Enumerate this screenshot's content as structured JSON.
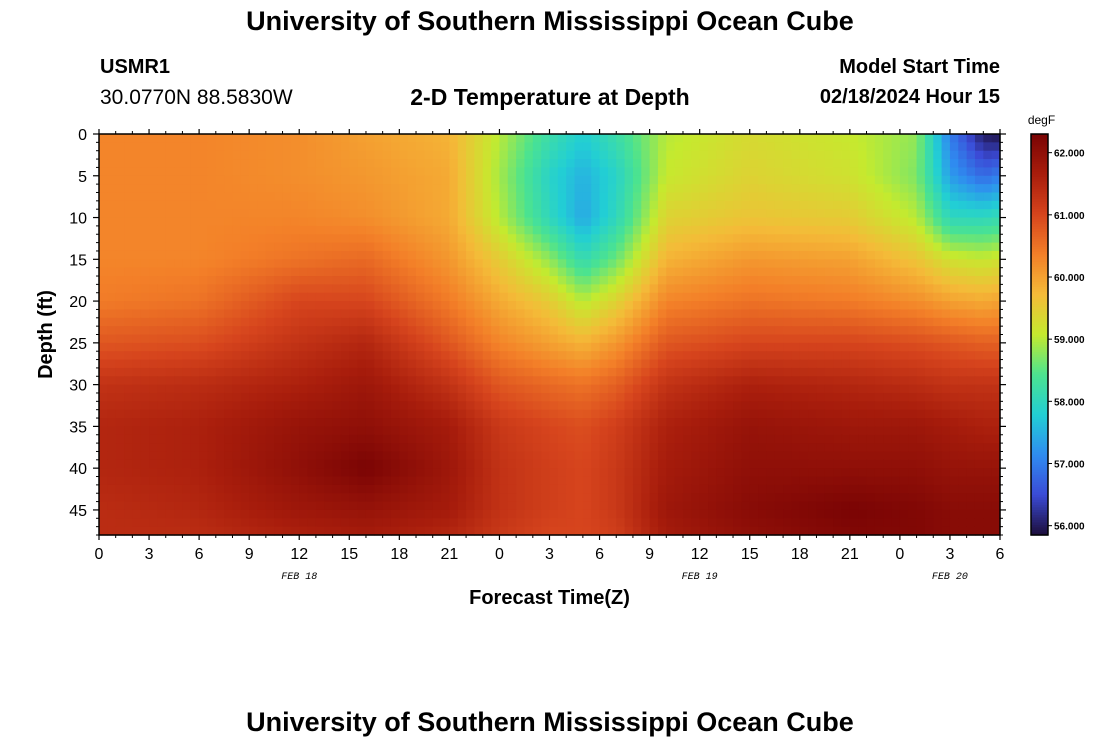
{
  "header": {
    "title": "University of Southern Mississippi Ocean Cube",
    "station_id": "USMR1",
    "station_coords": "30.0770N  88.5830W",
    "plot_title": "2-D Temperature at Depth",
    "model_label": "Model Start Time",
    "model_time": "02/18/2024 Hour 15"
  },
  "footer": {
    "title": "University of Southern Mississippi Ocean Cube"
  },
  "chart_data": {
    "type": "heatmap",
    "xlabel": "Forecast Time(Z)",
    "ylabel": "Depth (ft)",
    "x_tick_labels": [
      "0",
      "3",
      "6",
      "9",
      "12",
      "15",
      "18",
      "21",
      "0",
      "3",
      "6",
      "9",
      "12",
      "15",
      "18",
      "21",
      "0",
      "3",
      "6"
    ],
    "date_labels": [
      {
        "label": "FEB 18",
        "tick_index": 4
      },
      {
        "label": "FEB 19",
        "tick_index": 12
      },
      {
        "label": "FEB 20",
        "tick_index": 17
      }
    ],
    "x_hours_range": [
      0,
      54
    ],
    "ylim": [
      0,
      48
    ],
    "y_ticks": [
      0,
      5,
      10,
      15,
      20,
      25,
      30,
      35,
      40,
      45
    ],
    "colorbar": {
      "unit": "degF",
      "min": 55.85,
      "max": 62.3,
      "tick_values": [
        56,
        57,
        58,
        59,
        60,
        61,
        62
      ],
      "tick_labels": [
        "56.000",
        "57.000",
        "58.000",
        "59.000",
        "60.000",
        "61.000",
        "62.000"
      ],
      "colors": [
        "#1c0d3a",
        "#3b4bd6",
        "#2f8cf0",
        "#22cfd4",
        "#4ce38f",
        "#c5ea2e",
        "#f4bb38",
        "#f37f28",
        "#d6441d",
        "#a81d0c",
        "#7a0404"
      ]
    },
    "depth_profiles": {
      "depths_ft": [
        0,
        5,
        10,
        15,
        20,
        25,
        30,
        35,
        40,
        45,
        48
      ],
      "profiles": [
        {
          "hour": 0,
          "temps": [
            60.3,
            60.3,
            60.3,
            60.3,
            60.4,
            60.8,
            61.3,
            61.5,
            61.5,
            61.4,
            61.4
          ]
        },
        {
          "hour": 6,
          "temps": [
            60.3,
            60.3,
            60.3,
            60.3,
            60.5,
            60.9,
            61.4,
            61.6,
            61.6,
            61.5,
            61.4
          ]
        },
        {
          "hour": 12,
          "temps": [
            60.2,
            60.2,
            60.3,
            60.5,
            61.0,
            61.3,
            61.6,
            61.9,
            62.0,
            61.8,
            61.6
          ]
        },
        {
          "hour": 16,
          "temps": [
            60.0,
            60.1,
            60.2,
            60.6,
            61.0,
            61.5,
            61.8,
            62.0,
            62.3,
            61.9,
            61.7
          ]
        },
        {
          "hour": 21,
          "temps": [
            59.8,
            59.9,
            59.9,
            60.1,
            60.4,
            60.8,
            61.3,
            61.7,
            61.8,
            61.7,
            61.5
          ]
        },
        {
          "hour": 24,
          "temps": [
            59.0,
            58.9,
            59.0,
            59.5,
            59.9,
            60.3,
            60.8,
            61.2,
            61.3,
            61.3,
            61.2
          ]
        },
        {
          "hour": 27,
          "temps": [
            58.2,
            57.9,
            58.0,
            58.8,
            59.5,
            60.0,
            60.6,
            61.0,
            61.1,
            61.1,
            61.0
          ]
        },
        {
          "hour": 29,
          "temps": [
            57.8,
            57.5,
            57.4,
            58.1,
            59.0,
            59.8,
            60.5,
            60.9,
            61.0,
            61.0,
            61.0
          ]
        },
        {
          "hour": 31,
          "temps": [
            58.2,
            57.9,
            58.0,
            58.6,
            59.4,
            60.1,
            60.7,
            61.1,
            61.2,
            61.2,
            61.1
          ]
        },
        {
          "hour": 34,
          "temps": [
            59.0,
            59.1,
            59.4,
            59.8,
            60.3,
            60.8,
            61.3,
            61.6,
            61.7,
            61.8,
            61.7
          ]
        },
        {
          "hour": 39,
          "temps": [
            59.3,
            59.4,
            59.6,
            60.1,
            60.5,
            61.0,
            61.6,
            61.9,
            62.0,
            62.1,
            62.0
          ]
        },
        {
          "hour": 45,
          "temps": [
            59.1,
            59.2,
            59.5,
            60.0,
            60.4,
            61.0,
            61.5,
            61.8,
            62.0,
            62.3,
            62.2
          ]
        },
        {
          "hour": 49,
          "temps": [
            58.8,
            58.7,
            59.0,
            59.6,
            60.2,
            60.9,
            61.4,
            61.8,
            62.0,
            62.2,
            62.2
          ]
        },
        {
          "hour": 51,
          "temps": [
            57.0,
            57.3,
            58.0,
            59.2,
            60.0,
            60.8,
            61.3,
            61.7,
            61.9,
            62.1,
            62.1
          ]
        },
        {
          "hour": 53,
          "temps": [
            56.0,
            56.8,
            58.0,
            59.1,
            59.9,
            60.7,
            61.3,
            61.6,
            61.9,
            62.1,
            62.1
          ]
        },
        {
          "hour": 54,
          "temps": [
            55.9,
            57.0,
            58.1,
            59.2,
            60.0,
            60.7,
            61.3,
            61.6,
            61.9,
            62.1,
            62.1
          ]
        }
      ]
    }
  }
}
